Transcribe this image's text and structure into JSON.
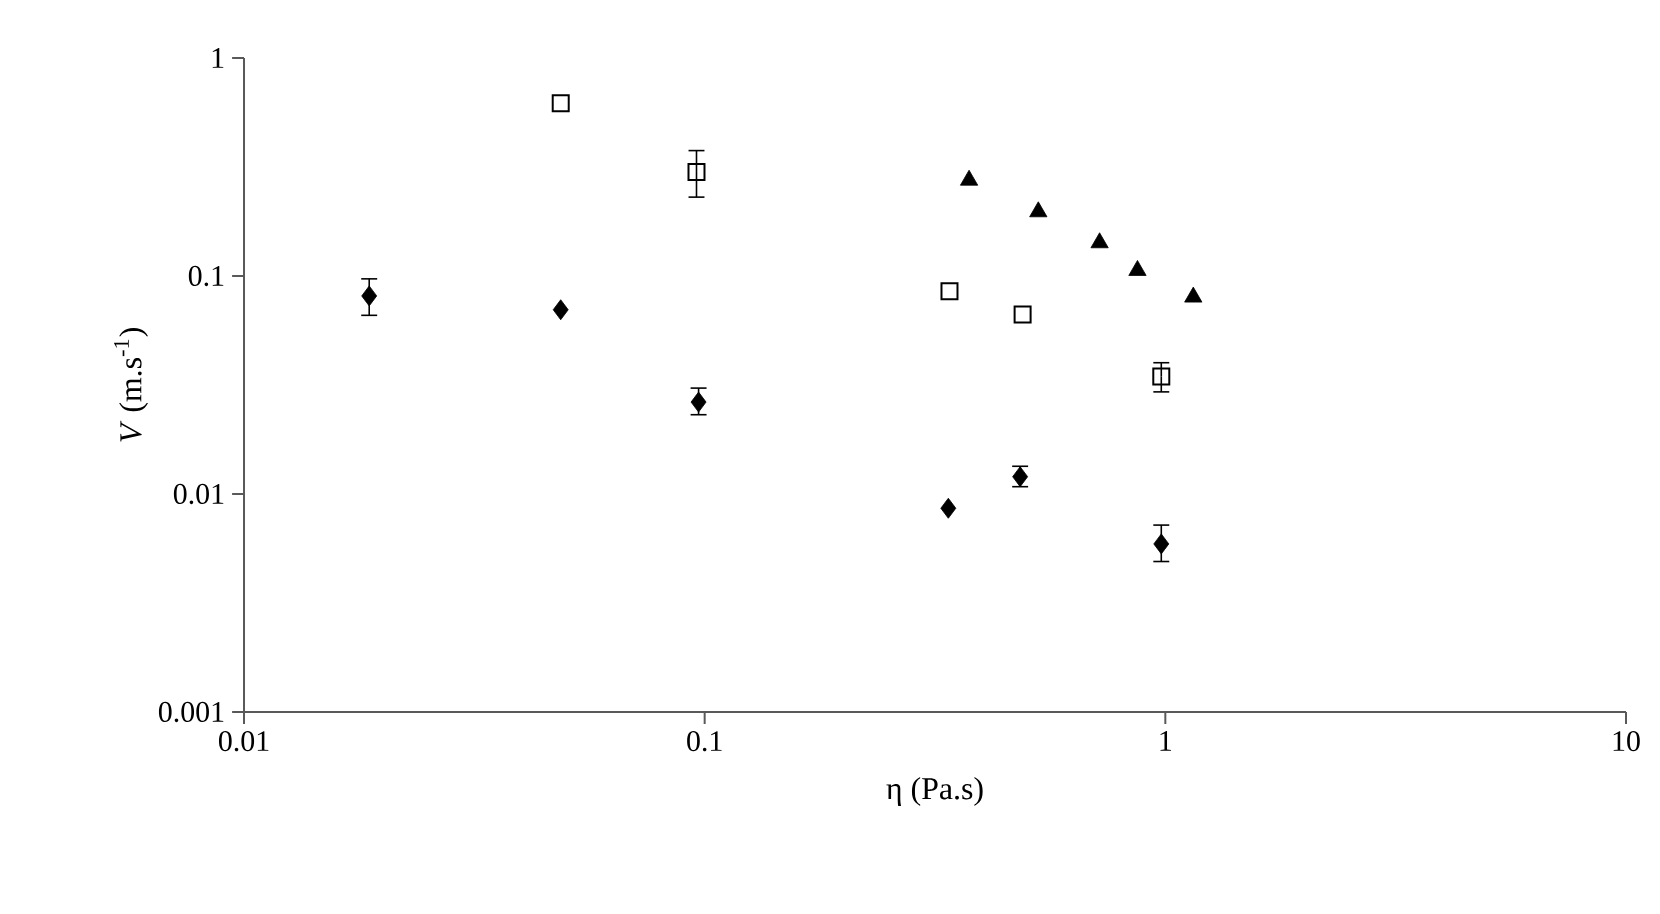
{
  "chart_data": {
    "type": "scatter",
    "xlabel": "η (Pa.s)",
    "ylabel": "*V* (m.s$^{-1}$)",
    "log": "xy",
    "grid": false,
    "xlim": [
      0.01,
      10
    ],
    "xticks": [
      0.01,
      0.1,
      1,
      10
    ],
    "ylim": [
      0.001,
      1
    ],
    "yticks": [
      0.001,
      0.01,
      0.1,
      1
    ],
    "series": [
      {
        "color": "#000000",
        "marker": "diamond",
        "x": [
          0.0187,
          0.0487,
          0.097,
          0.338,
          0.484,
          0.98
        ],
        "values": [
          0.081,
          0.07,
          0.0264,
          0.0086,
          0.012,
          0.0059
        ],
        "errors": [
          [
            0.066,
            0.097
          ],
          null,
          [
            0.0231,
            0.0306
          ],
          null,
          [
            0.0108,
            0.0134
          ],
          [
            0.0049,
            0.0072
          ]
        ]
      },
      {
        "color": "#000000",
        "marker": "square",
        "x": [
          0.0487,
          0.096,
          0.34,
          0.49,
          0.98
        ],
        "values": [
          0.62,
          0.3,
          0.085,
          0.0665,
          0.0346
        ],
        "errors": [
          null,
          [
            0.23,
            0.376
          ],
          null,
          null,
          [
            0.0294,
            0.04
          ]
        ]
      },
      {
        "color": "#000000",
        "marker": "triangle",
        "x": [
          0.375,
          0.53,
          0.72,
          0.87,
          1.15
        ],
        "values": [
          0.275,
          0.197,
          0.142,
          0.106,
          0.08
        ]
      }
    ]
  }
}
